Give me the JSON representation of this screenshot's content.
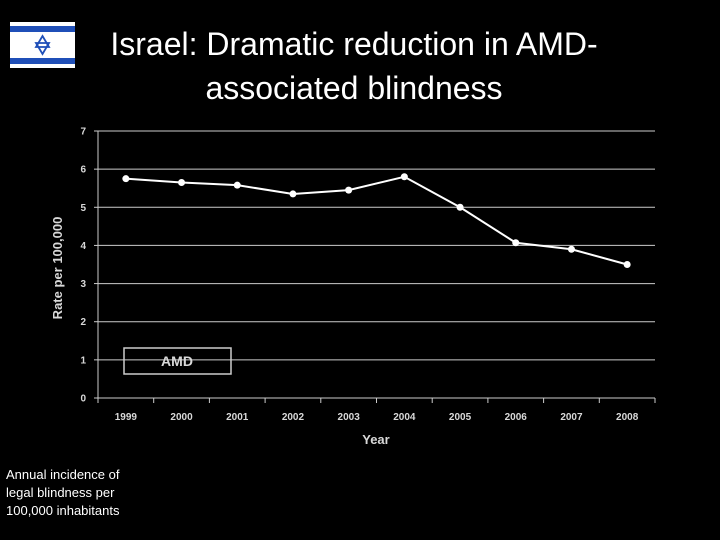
{
  "slide": {
    "title_line1": "Israel: Dramatic reduction in AMD-",
    "title_line2": "associated blindness",
    "caption": "Annual incidence of legal blindness per 100,000 inhabitants",
    "flag_icon": "israel-flag-icon",
    "flag_colors": {
      "background": "#ffffff",
      "stripe": "#1f4fb8"
    }
  },
  "chart_data": {
    "type": "line",
    "title": "",
    "xlabel": "Year",
    "ylabel": "Rate per 100,000",
    "categories": [
      "1999",
      "2000",
      "2001",
      "2002",
      "2003",
      "2004",
      "2005",
      "2006",
      "2007",
      "2008"
    ],
    "series": [
      {
        "name": "AMD",
        "values": [
          5.75,
          5.65,
          5.58,
          5.35,
          5.45,
          5.8,
          5.0,
          4.07,
          3.9,
          3.5
        ]
      }
    ],
    "yticks": [
      "0",
      "1",
      "2",
      "3",
      "4",
      "5",
      "6",
      "7"
    ],
    "ylim": [
      0,
      7
    ],
    "grid": true,
    "legend": "bottom-left",
    "colors": {
      "line": "#ffffff",
      "grid": "#cccccc",
      "text": "#d9d9d9"
    }
  }
}
